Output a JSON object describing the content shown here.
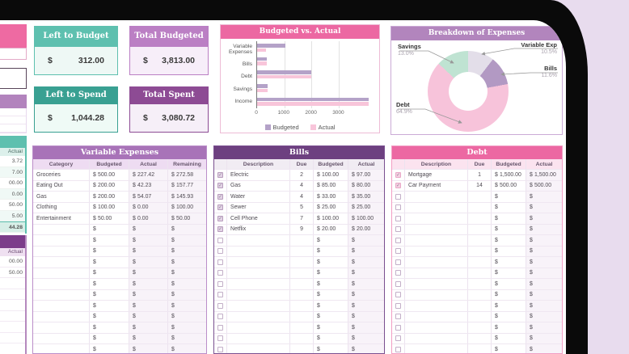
{
  "icons": {
    "check": "✓"
  },
  "summary_cards": {
    "left_to_budget": {
      "label": "Left to Budget",
      "currency": "$",
      "value": "312.00"
    },
    "total_budgeted": {
      "label": "Total Budgeted",
      "currency": "$",
      "value": "3,813.00"
    },
    "left_to_spend": {
      "label": "Left to Spend",
      "currency": "$",
      "value": "1,044.28"
    },
    "total_spent": {
      "label": "Total Spent",
      "currency": "$",
      "value": "3,080.72"
    }
  },
  "chart_data": [
    {
      "type": "bar",
      "title": "Budgeted vs. Actual",
      "orientation": "horizontal",
      "categories": [
        "Variable Expenses",
        "Bills",
        "Debt",
        "Savings",
        "Income"
      ],
      "series": [
        {
          "name": "Budgeted",
          "color": "#b4a2c8",
          "values": [
            1050,
            363,
            2000,
            400,
            4125
          ]
        },
        {
          "name": "Actual",
          "color": "#f8c5da",
          "values": [
            323.72,
            357,
            2000,
            400,
            4125
          ]
        }
      ],
      "xticks": [
        0,
        1000,
        2000,
        3000
      ],
      "xlim": [
        0,
        4200
      ],
      "grid": true,
      "legend_position": "bottom"
    },
    {
      "type": "pie",
      "donut": true,
      "title": "Breakdown of Expenses",
      "labels": [
        "Variable Exp",
        "Bills",
        "Debt",
        "Savings"
      ],
      "values": [
        10.5,
        11.6,
        64.9,
        13.0
      ],
      "display_pcts": [
        "10.5%",
        "11.6%",
        "64.9%",
        "13.0%"
      ],
      "unit": "%",
      "colors": [
        "#e3dee9",
        "#b299c3",
        "#f7c3da",
        "#bfe3d2"
      ]
    }
  ],
  "left_strip": {
    "teal_table": {
      "col": "Actual",
      "values": [
        "3.72",
        "7.00",
        "00.00",
        "0.00",
        "50.00",
        "5.00"
      ],
      "total": "44.28"
    },
    "purple_table": {
      "col": "Actual",
      "values": [
        "00.00",
        "50.00"
      ],
      "empty_rows": 7
    }
  },
  "tables": {
    "variable_expenses": {
      "title": "Variable Expenses",
      "currency": "$",
      "columns": [
        "Category",
        "Budgeted",
        "Actual",
        "Remaining"
      ],
      "rows": [
        {
          "category": "Groceries",
          "budgeted": "500.00",
          "actual": "227.42",
          "remaining": "272.58"
        },
        {
          "category": "Eating Out",
          "budgeted": "200.00",
          "actual": "42.23",
          "remaining": "157.77"
        },
        {
          "category": "Gas",
          "budgeted": "200.00",
          "actual": "54.07",
          "remaining": "145.93"
        },
        {
          "category": "Clothing",
          "budgeted": "100.00",
          "actual": "0.00",
          "remaining": "100.00"
        },
        {
          "category": "Entertainment",
          "budgeted": "50.00",
          "actual": "0.00",
          "remaining": "50.00"
        }
      ],
      "empty_rows": 12
    },
    "bills": {
      "title": "Bills",
      "currency": "$",
      "columns": [
        "Description",
        "Due",
        "Budgeted",
        "Actual"
      ],
      "rows": [
        {
          "checked": true,
          "description": "Electric",
          "due": "2",
          "budgeted": "100.00",
          "actual": "97.00"
        },
        {
          "checked": true,
          "description": "Gas",
          "due": "4",
          "budgeted": "85.00",
          "actual": "80.00"
        },
        {
          "checked": true,
          "description": "Water",
          "due": "4",
          "budgeted": "33.00",
          "actual": "35.00"
        },
        {
          "checked": true,
          "description": "Sewer",
          "due": "5",
          "budgeted": "25.00",
          "actual": "25.00"
        },
        {
          "checked": true,
          "description": "Cell Phone",
          "due": "7",
          "budgeted": "100.00",
          "actual": "100.00"
        },
        {
          "checked": true,
          "description": "Netflix",
          "due": "9",
          "budgeted": "20.00",
          "actual": "20.00"
        }
      ],
      "empty_rows": 11
    },
    "debt": {
      "title": "Debt",
      "currency": "$",
      "columns": [
        "Description",
        "Due",
        "Budgeted",
        "Actual"
      ],
      "rows": [
        {
          "checked": true,
          "description": "Mortgage",
          "due": "1",
          "budgeted": "1,500.00",
          "actual": "1,500.00"
        },
        {
          "checked": true,
          "description": "Car Payment",
          "due": "14",
          "budgeted": "500.00",
          "actual": "500.00"
        }
      ],
      "empty_rows": 15
    }
  }
}
